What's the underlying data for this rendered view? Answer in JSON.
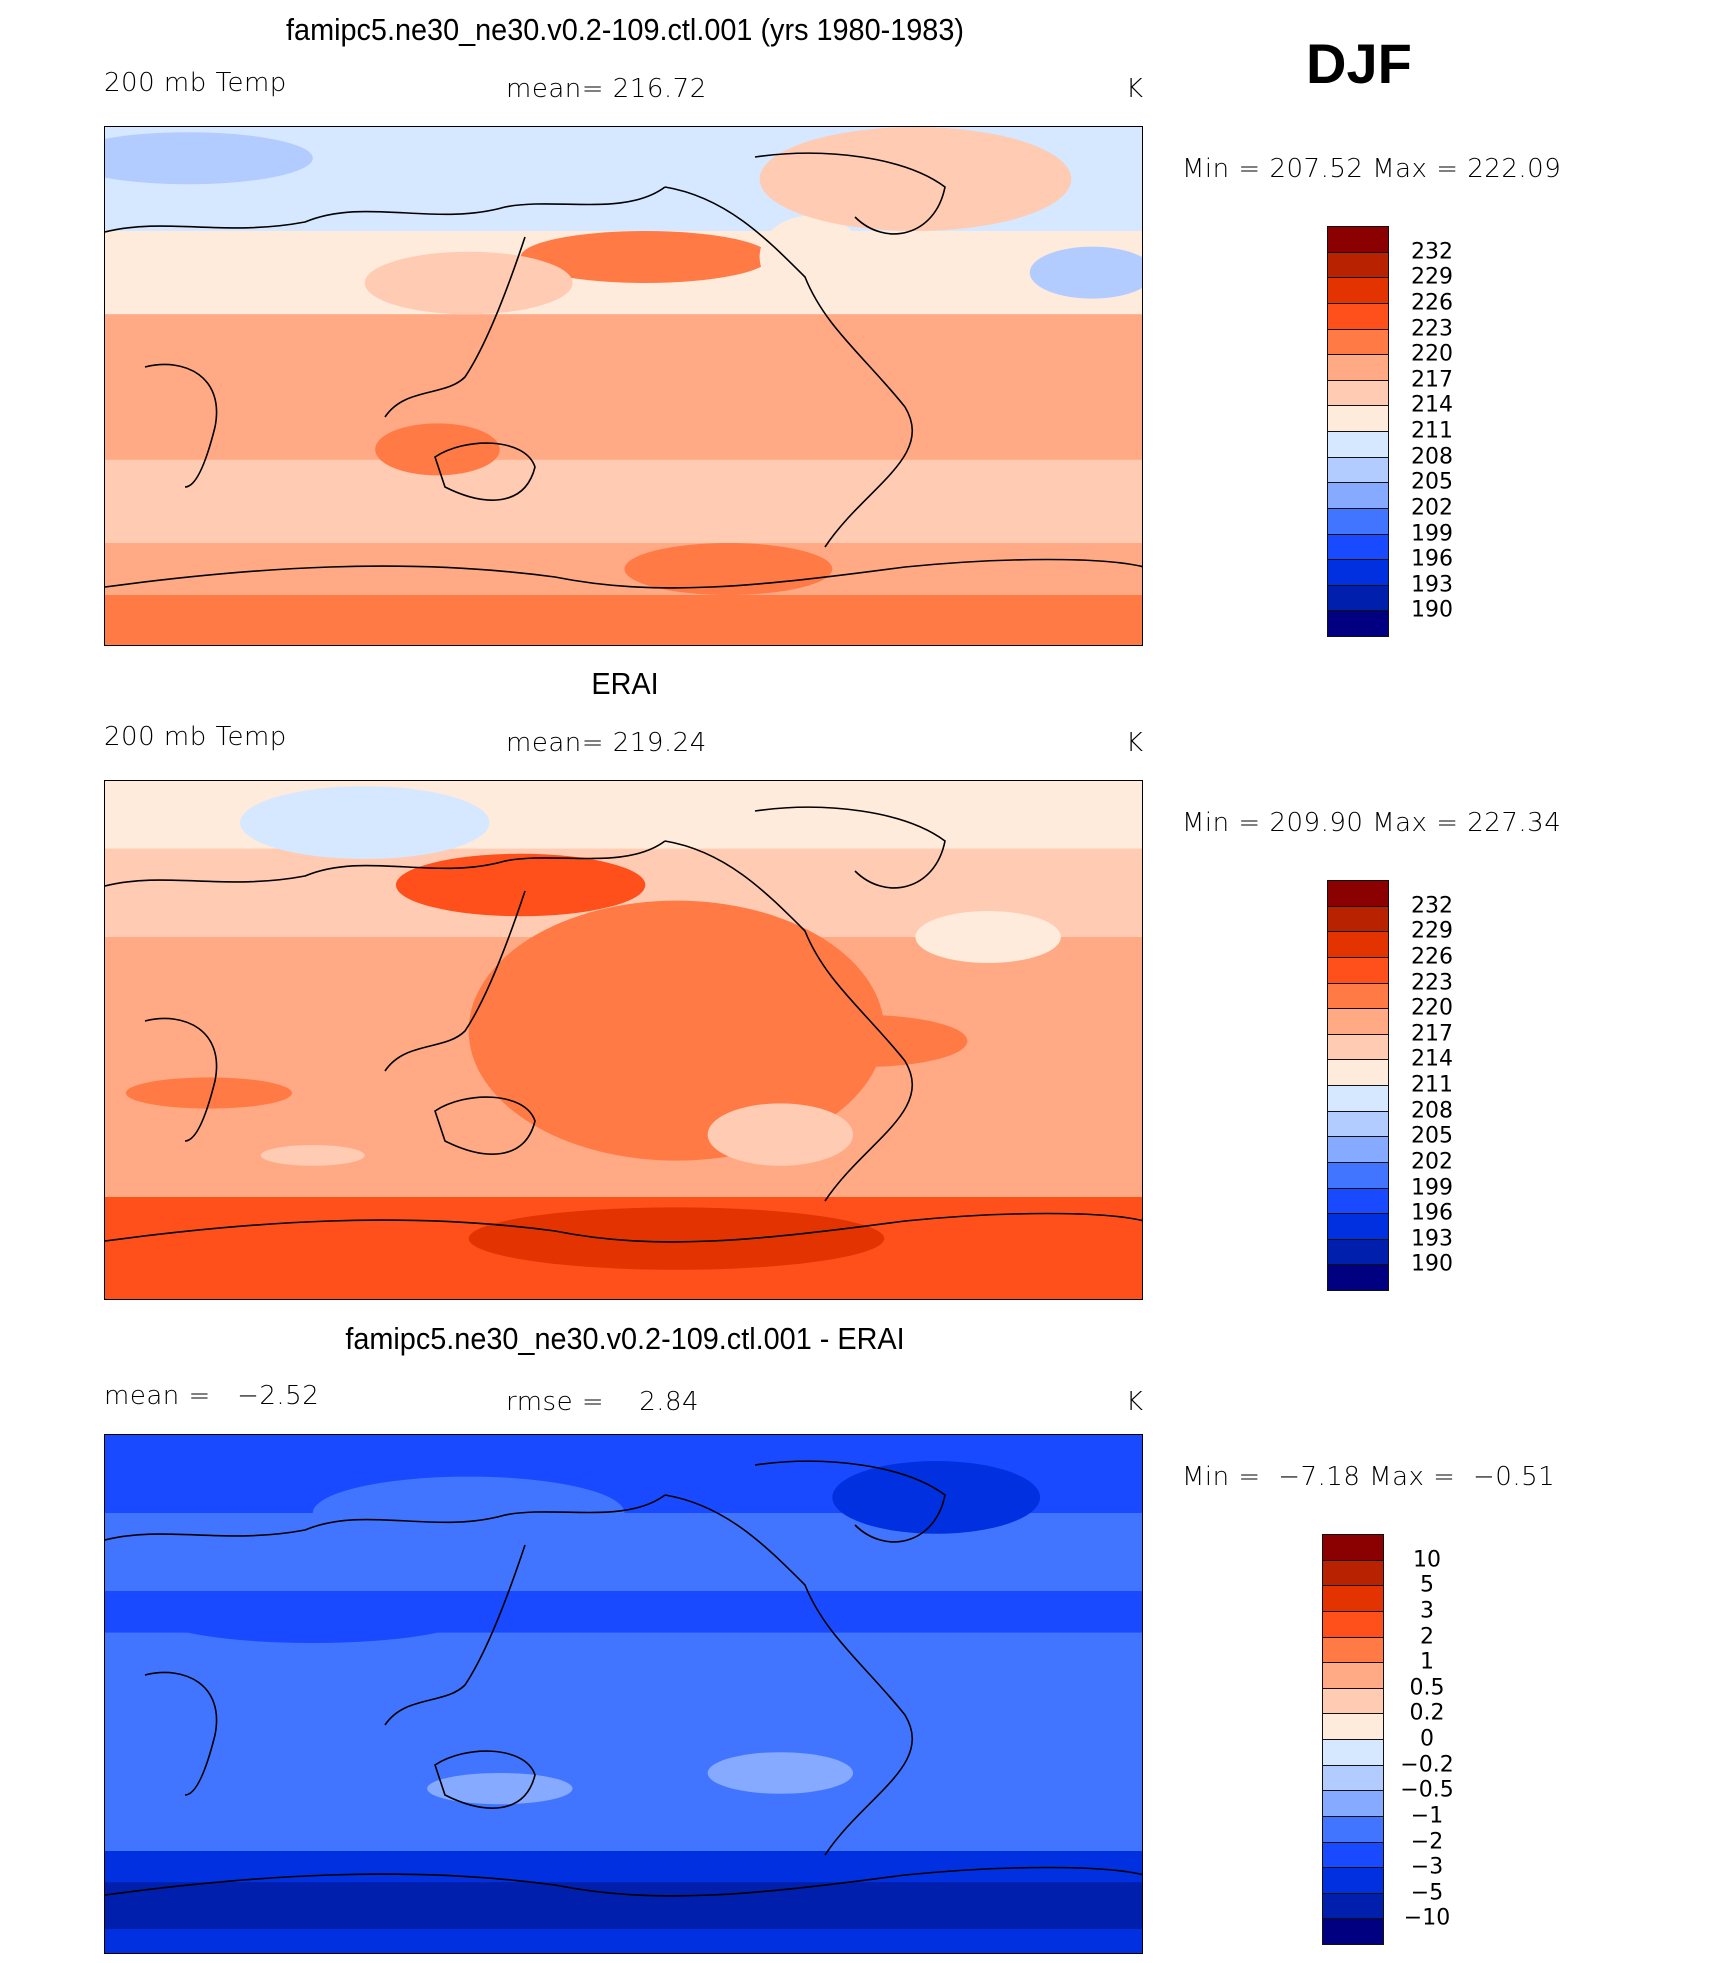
{
  "season": "DJF",
  "palette": [
    "#8b0000",
    "#b82200",
    "#e33300",
    "#ff4f1a",
    "#ff7a45",
    "#ffaa85",
    "#ffcbb3",
    "#ffebdb",
    "#d6e8ff",
    "#b3ccff",
    "#85aaff",
    "#4275ff",
    "#1a4aff",
    "#0030e0",
    "#001fad",
    "#000080"
  ],
  "chart_data": [
    {
      "type": "heatmap",
      "title": "famipc5.ne30_ne30.v0.2-109.ctl.001 (yrs 1980-1983)",
      "left_label": "200 mb Temp",
      "center_label": "mean= 216.72",
      "units": "K",
      "minmax": "Min = 207.52 Max = 222.09",
      "colorbar_levels": [
        "232",
        "229",
        "226",
        "223",
        "220",
        "217",
        "214",
        "211",
        "208",
        "205",
        "202",
        "199",
        "196",
        "193",
        "190"
      ]
    },
    {
      "type": "heatmap",
      "title": "ERAI",
      "left_label": "200 mb Temp",
      "center_label": "mean= 219.24",
      "units": "K",
      "minmax": "Min = 209.90 Max = 227.34",
      "colorbar_levels": [
        "232",
        "229",
        "226",
        "223",
        "220",
        "217",
        "214",
        "211",
        "208",
        "205",
        "202",
        "199",
        "196",
        "193",
        "190"
      ]
    },
    {
      "type": "heatmap",
      "title": "famipc5.ne30_ne30.v0.2-109.ctl.001 - ERAI",
      "left_label": "mean =   −2.52",
      "center_label": "rmse =    2.84",
      "units": "K",
      "minmax": "Min =  −7.18 Max =  −0.51",
      "colorbar_levels": [
        "10",
        "5",
        "3",
        "2",
        "1",
        "0.5",
        "0.2",
        "0",
        "−0.2",
        "−0.5",
        "−1",
        "−2",
        "−3",
        "−5",
        "−10"
      ]
    }
  ]
}
